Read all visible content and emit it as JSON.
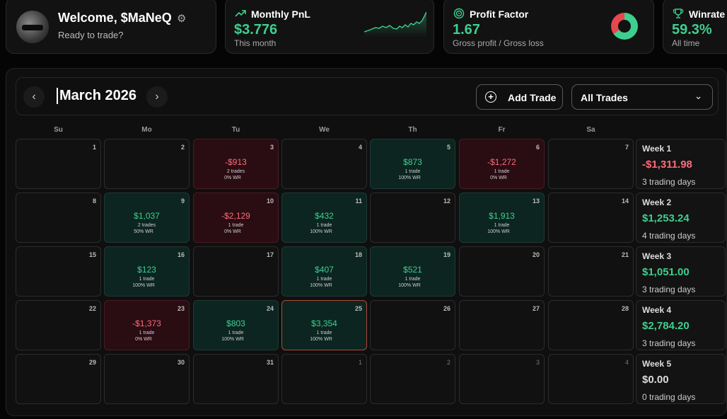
{
  "welcome": {
    "title": "Welcome, $MaNeQ",
    "subtitle": "Ready to trade?"
  },
  "stats": {
    "pnl": {
      "title": "Monthly PnL",
      "value": "$3.776",
      "sub": "This month",
      "icon": "trend-up-icon"
    },
    "profit_factor": {
      "title": "Profit Factor",
      "value": "1.67",
      "sub": "Gross profit / Gross loss",
      "icon": "target-icon"
    },
    "winrate": {
      "title": "Winrate",
      "value": "59.3%",
      "sub": "All time",
      "icon": "trophy-icon"
    }
  },
  "calendar": {
    "month": "March 2026",
    "add_trade": "Add Trade",
    "filter": "All Trades",
    "weekdays": [
      "Su",
      "Mo",
      "Tu",
      "We",
      "Th",
      "Fr",
      "Sa"
    ],
    "days": [
      {
        "n": "1"
      },
      {
        "n": "2"
      },
      {
        "n": "3",
        "amt": "-$913",
        "t": "2 trades",
        "wr": "0% WR",
        "s": "neg"
      },
      {
        "n": "4"
      },
      {
        "n": "5",
        "amt": "$873",
        "t": "1 trade",
        "wr": "100% WR",
        "s": "pos"
      },
      {
        "n": "6",
        "amt": "-$1,272",
        "t": "1 trade",
        "wr": "0% WR",
        "s": "neg"
      },
      {
        "n": "7"
      },
      {
        "n": "8"
      },
      {
        "n": "9",
        "amt": "$1,037",
        "t": "2 trades",
        "wr": "50% WR",
        "s": "pos"
      },
      {
        "n": "10",
        "amt": "-$2,129",
        "t": "1 trade",
        "wr": "0% WR",
        "s": "neg"
      },
      {
        "n": "11",
        "amt": "$432",
        "t": "1 trade",
        "wr": "100% WR",
        "s": "pos"
      },
      {
        "n": "12"
      },
      {
        "n": "13",
        "amt": "$1,913",
        "t": "1 trade",
        "wr": "100% WR",
        "s": "pos"
      },
      {
        "n": "14"
      },
      {
        "n": "15"
      },
      {
        "n": "16",
        "amt": "$123",
        "t": "1 trade",
        "wr": "100% WR",
        "s": "pos"
      },
      {
        "n": "17"
      },
      {
        "n": "18",
        "amt": "$407",
        "t": "1 trade",
        "wr": "100% WR",
        "s": "pos"
      },
      {
        "n": "19",
        "amt": "$521",
        "t": "1 trade",
        "wr": "100% WR",
        "s": "pos"
      },
      {
        "n": "20"
      },
      {
        "n": "21"
      },
      {
        "n": "22"
      },
      {
        "n": "23",
        "amt": "-$1,373",
        "t": "1 trade",
        "wr": "0% WR",
        "s": "neg"
      },
      {
        "n": "24",
        "amt": "$803",
        "t": "1 trade",
        "wr": "100% WR",
        "s": "pos"
      },
      {
        "n": "25",
        "amt": "$3,354",
        "t": "1 trade",
        "wr": "100% WR",
        "s": "pos",
        "today": true
      },
      {
        "n": "26"
      },
      {
        "n": "27"
      },
      {
        "n": "28"
      },
      {
        "n": "29"
      },
      {
        "n": "30"
      },
      {
        "n": "31"
      },
      {
        "n": "1",
        "other": true
      },
      {
        "n": "2",
        "other": true
      },
      {
        "n": "3",
        "other": true
      },
      {
        "n": "4",
        "other": true
      }
    ],
    "weeks": [
      {
        "title": "Week 1",
        "value": "-$1,311.98",
        "days": "3 trading days",
        "s": "neg"
      },
      {
        "title": "Week 2",
        "value": "$1,253.24",
        "days": "4 trading days",
        "s": "pos"
      },
      {
        "title": "Week 3",
        "value": "$1,051.00",
        "days": "3 trading days",
        "s": "pos"
      },
      {
        "title": "Week 4",
        "value": "$2,784.20",
        "days": "3 trading days",
        "s": "pos"
      },
      {
        "title": "Week 5",
        "value": "$0.00",
        "days": "0 trading days",
        "s": "zero"
      }
    ]
  }
}
